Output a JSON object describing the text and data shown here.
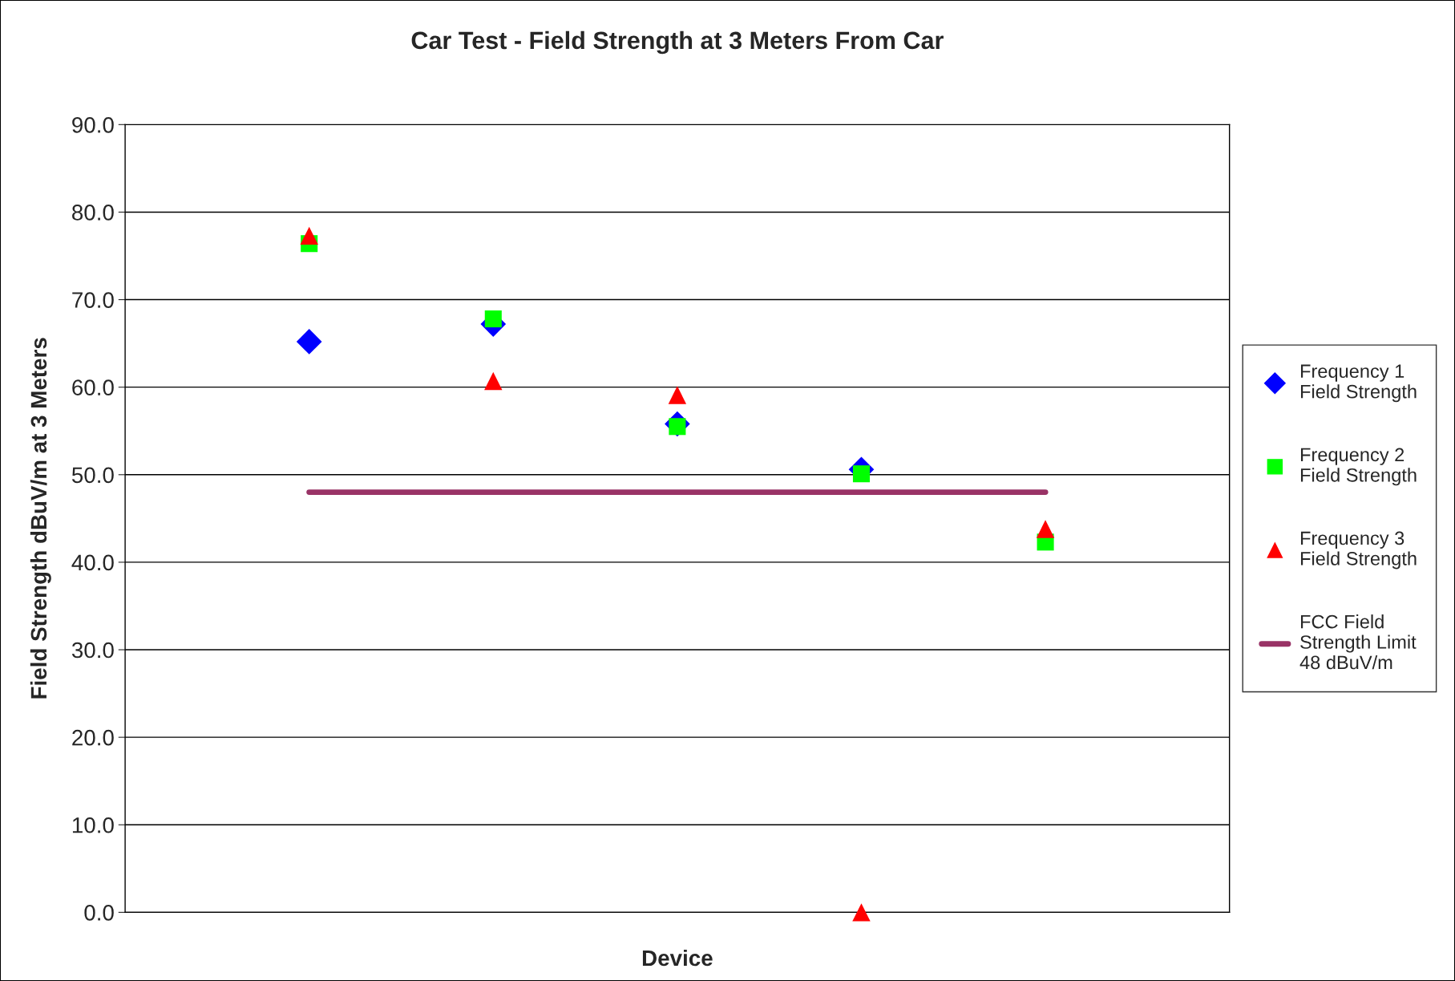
{
  "chart_data": {
    "type": "scatter",
    "title": "Car Test - Field Strength at 3 Meters From Car",
    "xlabel": "Device",
    "ylabel": "Field Strength dBuV/m at 3 Meters",
    "categories": [
      null,
      null,
      null,
      null,
      null
    ],
    "series": [
      {
        "name": "Frequency 1 Field Strength",
        "color": "#0000ff",
        "marker": "diamond",
        "values": [
          65.2,
          67.2,
          55.8,
          50.6,
          null
        ]
      },
      {
        "name": "Frequency 2 Field Strength",
        "color": "#00ff00",
        "marker": "square",
        "values": [
          76.4,
          67.8,
          55.5,
          50.1,
          42.3
        ]
      },
      {
        "name": "Frequency 3 Field Strength",
        "color": "#ff0000",
        "marker": "triangle",
        "values": [
          77.3,
          60.7,
          59.1,
          0.0,
          43.8
        ]
      },
      {
        "name": "FCC Field Strength Limit 48 dBuV/m",
        "type": "line",
        "color": "#993366",
        "marker": "none",
        "line_style": "solid",
        "values": [
          48,
          48,
          48,
          48,
          48
        ]
      }
    ],
    "ylim": [
      0,
      90
    ],
    "yticks": [
      {
        "value": 0,
        "label": "0.0"
      },
      {
        "value": 10,
        "label": "10.0"
      },
      {
        "value": 20,
        "label": "20.0"
      },
      {
        "value": 30,
        "label": "30.0"
      },
      {
        "value": 40,
        "label": "40.0"
      },
      {
        "value": 50,
        "label": "50.0"
      },
      {
        "value": 60,
        "label": "60.0"
      },
      {
        "value": 70,
        "label": "70.0"
      },
      {
        "value": 80,
        "label": "80.0"
      },
      {
        "value": 90,
        "label": "90.0"
      }
    ],
    "grid": "y",
    "legend": "right"
  }
}
